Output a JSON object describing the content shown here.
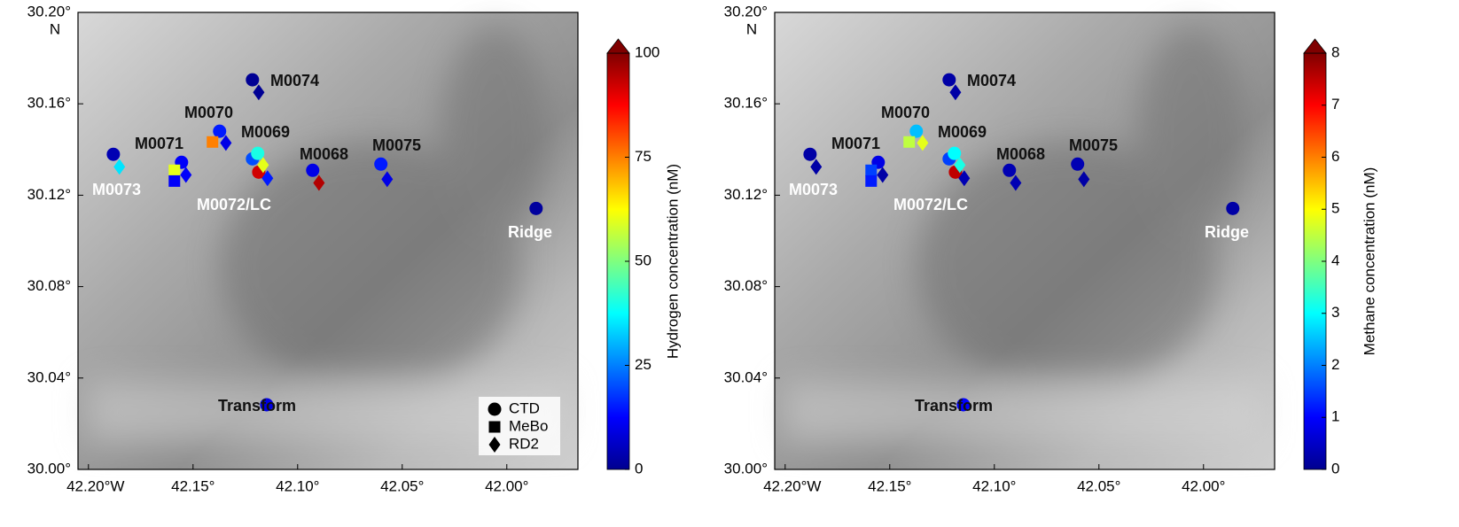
{
  "chart_data": [
    {
      "type": "map",
      "colorbar_label": "Hydrogen concentration (nM)",
      "xlim": [
        -42.205,
        -41.966
      ],
      "ylim": [
        30.0,
        30.2
      ],
      "xticks": [
        {
          "value": -42.2,
          "label": "42.20°W"
        },
        {
          "value": -42.15,
          "label": "42.15°"
        },
        {
          "value": -42.1,
          "label": "42.10°"
        },
        {
          "value": -42.05,
          "label": "42.05°"
        },
        {
          "value": -42.0,
          "label": "42.00°"
        }
      ],
      "yticks": [
        {
          "value": 30.0,
          "label": "30.00°"
        },
        {
          "value": 30.04,
          "label": "30.04°"
        },
        {
          "value": 30.08,
          "label": "30.08°"
        },
        {
          "value": 30.12,
          "label": "30.12°"
        },
        {
          "value": 30.16,
          "label": "30.16°"
        },
        {
          "value": 30.2,
          "label": "30.20°"
        }
      ],
      "ylabel": "N",
      "clim": [
        0,
        100
      ],
      "cticks": [
        0,
        25,
        50,
        75,
        100
      ],
      "colormap": "jet",
      "legend": true,
      "annotations": [
        "M0074",
        "M0070",
        "M0071",
        "M0069",
        "M0068",
        "M0075",
        "M0073",
        "M0072/LC",
        "Ridge",
        "Transform"
      ],
      "series": [
        {
          "name": "CTD",
          "marker": "circle",
          "x": [
            -42.1216,
            -42.1373,
            -42.1555,
            -42.1881,
            -42.1216,
            -42.1191,
            -42.1186,
            -42.0928,
            -42.0602,
            -41.986,
            -42.1148
          ],
          "y": [
            30.1705,
            30.148,
            30.1344,
            30.1379,
            30.1359,
            30.1383,
            30.1301,
            30.1309,
            30.1336,
            30.1142,
            30.0283
          ],
          "values": [
            2,
            15,
            12,
            5,
            20,
            40,
            92,
            10,
            15,
            3,
            10
          ]
        },
        {
          "name": "MeBo",
          "marker": "square",
          "x": [
            -42.1407,
            -42.1589,
            -42.1589
          ],
          "y": [
            30.1433,
            30.1309,
            30.1262
          ],
          "values": [
            75,
            60,
            12
          ]
        },
        {
          "name": "RD2",
          "marker": "diamond",
          "x": [
            -42.1186,
            -42.1343,
            -42.1534,
            -42.1852,
            -42.1165,
            -42.1144,
            -42.0898,
            -42.0572
          ],
          "y": [
            30.165,
            30.1429,
            30.1289,
            30.1324,
            30.1332,
            30.1274,
            30.1254,
            30.127
          ],
          "values": [
            2,
            10,
            12,
            35,
            60,
            15,
            95,
            10
          ]
        }
      ]
    },
    {
      "type": "map",
      "colorbar_label": "Methane concentration (nM)",
      "xlim": [
        -42.205,
        -41.966
      ],
      "ylim": [
        30.0,
        30.2
      ],
      "xticks": [
        {
          "value": -42.2,
          "label": "42.20°W"
        },
        {
          "value": -42.15,
          "label": "42.15°"
        },
        {
          "value": -42.1,
          "label": "42.10°"
        },
        {
          "value": -42.05,
          "label": "42.05°"
        },
        {
          "value": -42.0,
          "label": "42.00°"
        }
      ],
      "yticks": [
        {
          "value": 30.0,
          "label": "30.00°"
        },
        {
          "value": 30.04,
          "label": "30.04°"
        },
        {
          "value": 30.08,
          "label": "30.08°"
        },
        {
          "value": 30.12,
          "label": "30.12°"
        },
        {
          "value": 30.16,
          "label": "30.16°"
        },
        {
          "value": 30.2,
          "label": "30.20°"
        }
      ],
      "ylabel": "N",
      "clim": [
        0,
        8
      ],
      "cticks": [
        0,
        1,
        2,
        3,
        4,
        5,
        6,
        7,
        8
      ],
      "colormap": "jet",
      "legend": false,
      "annotations": [
        "M0074",
        "M0070",
        "M0071",
        "M0069",
        "M0068",
        "M0075",
        "M0073",
        "M0072/LC",
        "Ridge",
        "Transform"
      ],
      "series": [
        {
          "marker": "circle",
          "x": [
            -42.1216,
            -42.1373,
            -42.1555,
            -42.1881,
            -42.1216,
            -42.1191,
            -42.1186,
            -42.0928,
            -42.0602,
            -41.986,
            -42.1148
          ],
          "y": [
            30.1705,
            30.148,
            30.1344,
            30.1379,
            30.1359,
            30.1383,
            30.1301,
            30.1309,
            30.1336,
            30.1142,
            30.0283
          ],
          "values": [
            0.3,
            2.5,
            0.8,
            0.3,
            1.5,
            3,
            7.5,
            0.4,
            0.4,
            0.3,
            1
          ]
        },
        {
          "marker": "square",
          "x": [
            -42.1407,
            -42.1589,
            -42.1589
          ],
          "y": [
            30.1433,
            30.1309,
            30.1262
          ],
          "values": [
            4.5,
            1.5,
            1.2
          ]
        },
        {
          "marker": "diamond",
          "x": [
            -42.1186,
            -42.1343,
            -42.1534,
            -42.1852,
            -42.1165,
            -42.1144,
            -42.0898,
            -42.0572
          ],
          "y": [
            30.165,
            30.1429,
            30.1289,
            30.1324,
            30.1332,
            30.1274,
            30.1254,
            30.127
          ],
          "values": [
            0.3,
            4.8,
            0.3,
            0.3,
            3.2,
            0.4,
            0.4,
            0.3
          ]
        }
      ]
    }
  ]
}
